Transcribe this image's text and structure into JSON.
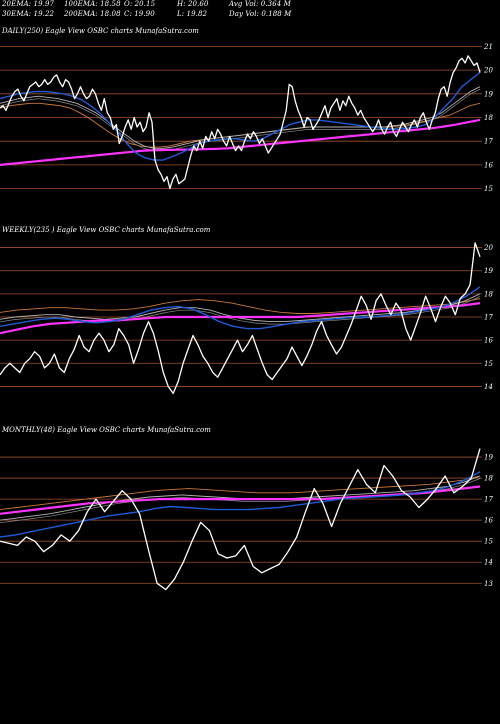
{
  "header": {
    "row1": {
      "ema20": "20EMA: 19.97",
      "ema100": "100EMA: 18.58",
      "open": "O: 20.15",
      "high": "H: 20.60",
      "avgvol": "Avg Vol: 0.364  M"
    },
    "row2": {
      "ema30": "30EMA: 19.22",
      "ema200": "200EMA: 18.08",
      "close": "C: 19.90",
      "low": "L: 19.82",
      "dayvol": "Day Vol: 0.188  M"
    }
  },
  "colors": {
    "background": "#000000",
    "price": "#ffffff",
    "ema_fast": "#1f5bd8",
    "ema_long": "#ff33ff",
    "ema_mid": "#b3b3b3",
    "ema_orange": "#c8783a",
    "gridline": "#a0522d"
  },
  "chart_data": [
    {
      "type": "line",
      "title": "DAILY(250) Eagle  View  OSBC charts MunafaSutra.com",
      "yticks": [
        21,
        20,
        19,
        18,
        17,
        16,
        15
      ],
      "ylim": [
        14.6,
        21.4
      ],
      "series": [
        {
          "key": "price",
          "values": [
            18.4,
            18.5,
            18.3,
            18.6,
            18.9,
            19.1,
            19.2,
            18.9,
            18.7,
            19.0,
            19.3,
            19.4,
            19.5,
            19.3,
            19.4,
            19.6,
            19.4,
            19.5,
            19.7,
            19.8,
            19.5,
            19.3,
            19.6,
            19.5,
            19.2,
            18.8,
            19.0,
            19.3,
            19.0,
            18.8,
            18.9,
            19.2,
            19.0,
            18.6,
            18.3,
            18.8,
            18.2,
            18.0,
            17.5,
            17.7,
            16.9,
            17.2,
            17.6,
            17.9,
            17.5,
            18.0,
            17.6,
            17.8,
            17.4,
            17.6,
            18.2,
            17.8,
            16.2,
            15.8,
            15.6,
            15.3,
            15.5,
            15.0,
            15.4,
            15.6,
            15.2,
            15.3,
            15.4,
            15.9,
            16.4,
            16.8,
            16.6,
            17.0,
            16.7,
            17.2,
            17.0,
            17.4,
            17.1,
            17.5,
            17.3,
            17.0,
            16.8,
            17.2,
            16.9,
            16.6,
            16.8,
            16.6,
            17.0,
            17.3,
            17.1,
            17.4,
            17.2,
            16.9,
            17.1,
            16.8,
            16.5,
            16.7,
            16.9,
            17.1,
            17.3,
            17.8,
            18.3,
            19.4,
            19.3,
            18.7,
            18.3,
            18.0,
            17.6,
            18.0,
            17.9,
            17.5,
            17.7,
            17.9,
            18.2,
            18.5,
            18.0,
            18.4,
            18.6,
            18.8,
            18.3,
            18.7,
            18.5,
            18.9,
            18.6,
            18.4,
            18.1,
            18.3,
            18.0,
            17.8,
            17.6,
            17.4,
            17.6,
            17.9,
            17.5,
            17.3,
            17.6,
            17.8,
            17.4,
            17.2,
            17.5,
            17.8,
            17.6,
            17.4,
            17.7,
            17.9,
            17.6,
            18.0,
            18.2,
            17.8,
            17.5,
            17.9,
            18.2,
            18.8,
            19.2,
            19.3,
            18.9,
            19.5,
            19.9,
            20.1,
            20.4,
            20.5,
            20.3,
            20.6,
            20.4,
            20.2,
            20.3,
            19.9
          ]
        },
        {
          "key": "ema_fast",
          "values": [
            18.8,
            18.9,
            19.0,
            19.05,
            19.1,
            19.1,
            19.05,
            19.0,
            18.9,
            18.75,
            18.5,
            18.2,
            17.8,
            17.4,
            16.9,
            16.5,
            16.3,
            16.2,
            16.2,
            16.35,
            16.5,
            16.7,
            16.9,
            17.0,
            17.05,
            17.1,
            17.1,
            17.05,
            17.0,
            17.1,
            17.3,
            17.5,
            17.7,
            17.8,
            17.9,
            17.9,
            17.85,
            17.8,
            17.75,
            17.7,
            17.65,
            17.6,
            17.55,
            17.5,
            17.5,
            17.55,
            17.6,
            17.7,
            18.0,
            18.4,
            18.8,
            19.3,
            19.6,
            19.9
          ]
        },
        {
          "key": "ema_mid",
          "values": [
            18.6,
            18.7,
            18.8,
            18.85,
            18.9,
            18.85,
            18.8,
            18.7,
            18.6,
            18.4,
            18.2,
            17.9,
            17.6,
            17.3,
            17.0,
            16.8,
            16.7,
            16.7,
            16.75,
            16.85,
            16.95,
            17.05,
            17.1,
            17.15,
            17.2,
            17.25,
            17.3,
            17.35,
            17.4,
            17.45,
            17.5,
            17.55,
            17.6,
            17.6,
            17.6,
            17.6,
            17.6,
            17.6,
            17.6,
            17.6,
            17.6,
            17.65,
            17.7,
            17.8,
            17.9,
            18.0,
            18.2,
            18.5,
            18.8,
            19.1,
            19.3
          ]
        },
        {
          "key": "ema_orange",
          "values": [
            18.4,
            18.5,
            18.55,
            18.6,
            18.6,
            18.55,
            18.5,
            18.4,
            18.2,
            17.95,
            17.65,
            17.35,
            17.1,
            16.9,
            16.8,
            16.75,
            16.75,
            16.8,
            16.9,
            17.0,
            17.05,
            17.1,
            17.15,
            17.2,
            17.25,
            17.3,
            17.35,
            17.4,
            17.45,
            17.5,
            17.55,
            17.6,
            17.6,
            17.6,
            17.6,
            17.6,
            17.6,
            17.6,
            17.6,
            17.6,
            17.65,
            17.7,
            17.8,
            17.9,
            18.0,
            18.1,
            18.3,
            18.5,
            18.6
          ]
        },
        {
          "key": "ema_long",
          "values": [
            16.0,
            16.05,
            16.1,
            16.15,
            16.2,
            16.25,
            16.3,
            16.35,
            16.4,
            16.45,
            16.5,
            16.55,
            16.6,
            16.62,
            16.63,
            16.64,
            16.65,
            16.66,
            16.68,
            16.7,
            16.75,
            16.8,
            16.85,
            16.9,
            16.95,
            17.0,
            17.05,
            17.1,
            17.15,
            17.2,
            17.25,
            17.3,
            17.35,
            17.4,
            17.45,
            17.5,
            17.55,
            17.62,
            17.7,
            17.8,
            17.9
          ]
        }
      ]
    },
    {
      "type": "line",
      "title": "WEEKLY(235                 ) Eagle  View  OSBC charts MunafaSutra.com",
      "yticks": [
        20,
        19,
        18,
        17,
        16,
        15,
        14
      ],
      "ylim": [
        13.5,
        20.5
      ],
      "series": [
        {
          "key": "price",
          "values": [
            14.5,
            14.8,
            15.0,
            14.8,
            14.6,
            15.0,
            15.2,
            15.5,
            15.3,
            14.8,
            15.0,
            15.4,
            14.8,
            14.6,
            15.2,
            15.6,
            16.2,
            15.7,
            15.5,
            16.0,
            16.3,
            16.0,
            15.5,
            15.8,
            16.5,
            16.2,
            15.8,
            15.0,
            15.6,
            16.3,
            16.8,
            16.3,
            15.5,
            14.6,
            14.0,
            13.7,
            14.2,
            15.0,
            15.6,
            16.2,
            15.8,
            15.3,
            15.0,
            14.6,
            14.4,
            14.8,
            15.2,
            15.6,
            16.0,
            15.5,
            15.8,
            16.2,
            15.6,
            15.0,
            14.5,
            14.3,
            14.6,
            14.9,
            15.2,
            15.7,
            15.3,
            14.9,
            15.3,
            15.8,
            16.4,
            16.8,
            16.2,
            15.8,
            15.4,
            15.7,
            16.2,
            16.7,
            17.3,
            17.9,
            17.5,
            16.9,
            17.7,
            18.0,
            17.5,
            17.1,
            17.6,
            17.3,
            16.5,
            16.0,
            16.6,
            17.2,
            17.9,
            17.4,
            16.8,
            17.4,
            17.9,
            17.6,
            17.1,
            17.8,
            18.0,
            18.4,
            20.2,
            19.6
          ]
        },
        {
          "key": "ema_fast",
          "values": [
            16.6,
            16.7,
            16.8,
            16.9,
            16.95,
            16.9,
            16.8,
            16.75,
            16.8,
            16.9,
            17.1,
            17.3,
            17.4,
            17.45,
            17.35,
            17.1,
            16.8,
            16.6,
            16.5,
            16.5,
            16.6,
            16.7,
            16.8,
            16.85,
            16.9,
            16.95,
            17.0,
            17.0,
            17.05,
            17.1,
            17.2,
            17.3,
            17.4,
            17.6,
            17.9,
            18.3
          ]
        },
        {
          "key": "ema_mid",
          "values": [
            16.9,
            17.0,
            17.05,
            17.1,
            17.1,
            17.0,
            16.95,
            16.9,
            16.95,
            17.0,
            17.15,
            17.3,
            17.4,
            17.4,
            17.3,
            17.1,
            16.95,
            16.85,
            16.8,
            16.8,
            16.85,
            16.9,
            16.95,
            17.0,
            17.05,
            17.1,
            17.15,
            17.2,
            17.3,
            17.4,
            17.5,
            17.7,
            18.0
          ]
        },
        {
          "key": "ema_orange",
          "values": [
            17.2,
            17.3,
            17.35,
            17.4,
            17.4,
            17.35,
            17.3,
            17.3,
            17.35,
            17.45,
            17.6,
            17.7,
            17.75,
            17.7,
            17.6,
            17.45,
            17.3,
            17.2,
            17.15,
            17.15,
            17.2,
            17.25,
            17.3,
            17.35,
            17.4,
            17.45,
            17.5,
            17.55,
            17.65,
            17.8
          ]
        },
        {
          "key": "ema_long",
          "values": [
            16.3,
            16.45,
            16.6,
            16.7,
            16.75,
            16.8,
            16.85,
            16.85,
            16.9,
            16.95,
            17.0,
            17.0,
            17.0,
            17.0,
            17.0,
            17.0,
            17.0,
            17.0,
            17.0,
            17.05,
            17.1,
            17.15,
            17.2,
            17.25,
            17.3,
            17.35,
            17.4,
            17.45,
            17.5,
            17.6
          ]
        }
      ]
    },
    {
      "type": "line",
      "title": "MONTHLY(48) Eagle  View  OSBC charts MunafaSutra.com",
      "yticks": [
        19,
        18,
        17,
        16,
        15,
        14,
        13
      ],
      "ylim": [
        12.3,
        20.0
      ],
      "series": [
        {
          "key": "price",
          "values": [
            15.0,
            14.9,
            14.8,
            15.2,
            15.0,
            14.5,
            14.8,
            15.3,
            15.0,
            15.5,
            16.4,
            17.0,
            16.4,
            16.9,
            17.4,
            17.0,
            16.3,
            14.6,
            13.0,
            12.7,
            13.2,
            14.0,
            15.0,
            15.9,
            15.5,
            14.4,
            14.2,
            14.3,
            14.8,
            13.8,
            13.5,
            13.7,
            13.9,
            14.5,
            15.2,
            16.4,
            17.5,
            16.8,
            15.7,
            16.8,
            17.6,
            18.4,
            17.7,
            17.3,
            18.6,
            18.1,
            17.4,
            17.1,
            16.6,
            17.0,
            17.5,
            18.1,
            17.3,
            17.6,
            18.0,
            19.4
          ]
        },
        {
          "key": "ema_fast",
          "values": [
            15.2,
            15.3,
            15.45,
            15.6,
            15.75,
            15.9,
            16.05,
            16.2,
            16.3,
            16.4,
            16.55,
            16.65,
            16.6,
            16.55,
            16.5,
            16.5,
            16.5,
            16.55,
            16.6,
            16.7,
            16.8,
            16.9,
            17.0,
            17.05,
            17.1,
            17.15,
            17.2,
            17.3,
            17.4,
            17.6,
            17.9,
            18.3
          ]
        },
        {
          "key": "ema_mid",
          "values": [
            16.0,
            16.1,
            16.2,
            16.3,
            16.45,
            16.6,
            16.75,
            16.9,
            17.0,
            17.1,
            17.15,
            17.2,
            17.15,
            17.1,
            17.05,
            17.0,
            17.0,
            17.0,
            17.05,
            17.1,
            17.15,
            17.2,
            17.25,
            17.3,
            17.35,
            17.4,
            17.5,
            17.6,
            17.8,
            18.1
          ]
        },
        {
          "key": "ema_orange",
          "values": [
            16.5,
            16.6,
            16.7,
            16.8,
            16.9,
            17.0,
            17.1,
            17.2,
            17.3,
            17.4,
            17.45,
            17.5,
            17.45,
            17.4,
            17.35,
            17.3,
            17.3,
            17.3,
            17.35,
            17.4,
            17.45,
            17.5,
            17.55,
            17.6,
            17.65,
            17.7,
            17.8,
            17.9,
            18.1
          ]
        },
        {
          "key": "ema_long",
          "values": [
            16.3,
            16.4,
            16.5,
            16.6,
            16.7,
            16.8,
            16.85,
            16.9,
            16.95,
            17.0,
            17.0,
            17.0,
            17.0,
            17.0,
            17.0,
            17.0,
            17.0,
            17.0,
            17.0,
            17.05,
            17.1,
            17.15,
            17.2,
            17.25,
            17.3,
            17.4,
            17.5,
            17.6
          ]
        }
      ]
    }
  ]
}
